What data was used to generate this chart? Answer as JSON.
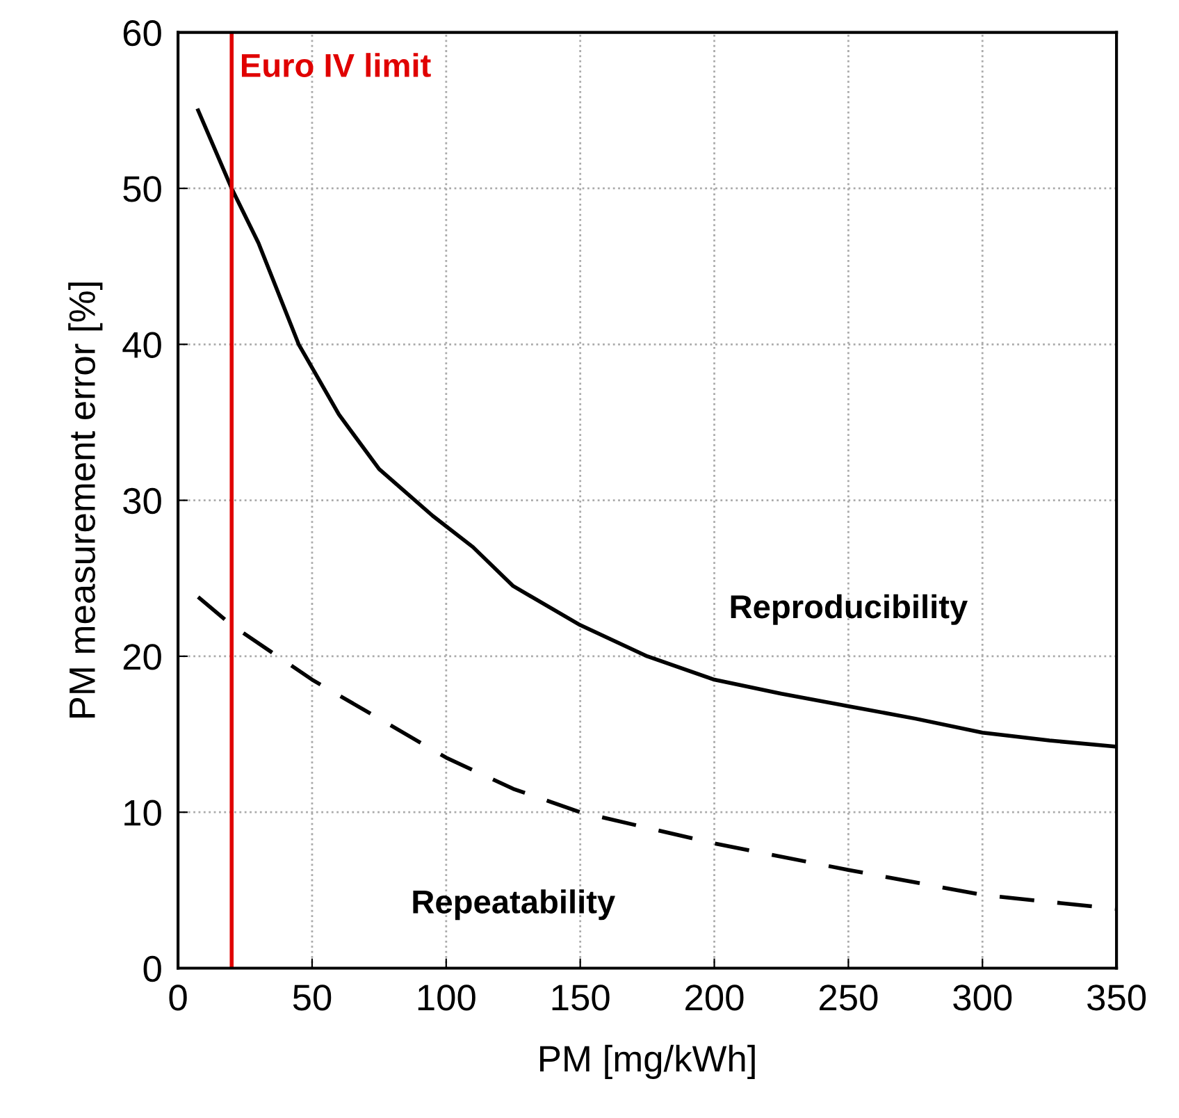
{
  "chart_data": {
    "type": "line",
    "xlabel": "PM [mg/kWh]",
    "ylabel": "PM measurement error [%]",
    "xlim": [
      0,
      350
    ],
    "xticks": [
      0,
      50,
      100,
      150,
      200,
      250,
      300,
      350
    ],
    "ylim": [
      0,
      60
    ],
    "yticks": [
      0,
      10,
      20,
      30,
      40,
      50,
      60
    ],
    "grid": true,
    "marker": "none",
    "series": [
      {
        "name": "Reproducibility",
        "color": "#000000",
        "line_style": "solid",
        "x": [
          7.5,
          20,
          30,
          45,
          60,
          75,
          95,
          110,
          125,
          150,
          175,
          200,
          225,
          250,
          275,
          300,
          325,
          350
        ],
        "values": [
          55,
          50,
          46.5,
          40,
          35.5,
          32,
          29,
          27,
          24.5,
          22,
          20,
          18.5,
          17.6,
          16.8,
          16,
          15.1,
          14.6,
          14.2
        ]
      },
      {
        "name": "Repeatability",
        "color": "#000000",
        "line_style": "dashed",
        "x": [
          7.5,
          20,
          50,
          75,
          100,
          125,
          150,
          175,
          200,
          250,
          300,
          350
        ],
        "values": [
          23.8,
          22,
          18.5,
          16,
          13.5,
          11.5,
          10,
          9,
          8,
          6.3,
          4.7,
          3.8
        ]
      }
    ],
    "ref_lines": [
      {
        "axis": "x",
        "value": 20,
        "label": "Euro IV limit",
        "color": "#e00000",
        "line_style": "solid"
      }
    ]
  }
}
